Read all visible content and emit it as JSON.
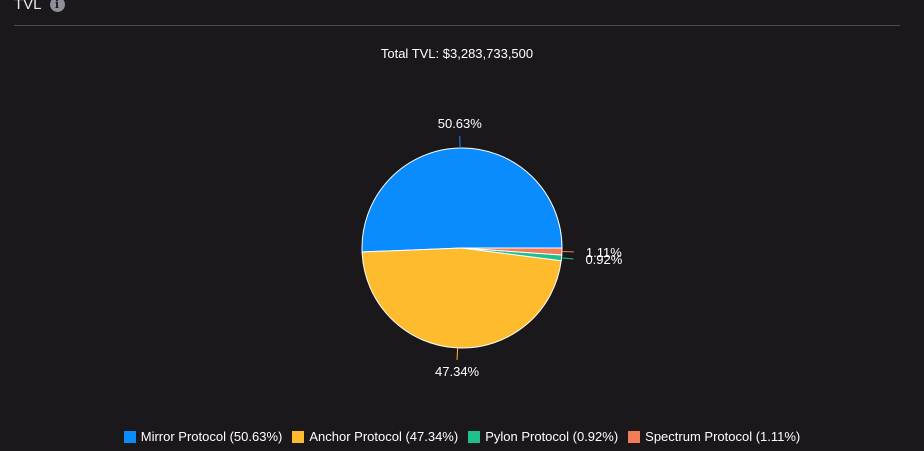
{
  "header": {
    "title": "TVL",
    "info_icon": "info-icon"
  },
  "chart_data": {
    "type": "pie",
    "title": "Total TVL: $3,283,733,500",
    "slices": [
      {
        "name": "Mirror Protocol",
        "value": 50.63,
        "label": "50.63%",
        "legend": "Mirror Protocol (50.63%)",
        "color": "#0a8cff"
      },
      {
        "name": "Anchor Protocol",
        "value": 47.34,
        "label": "47.34%",
        "legend": "Anchor Protocol (47.34%)",
        "color": "#fdbb2d"
      },
      {
        "name": "Pylon Protocol",
        "value": 0.92,
        "label": "0.92%",
        "legend": "Pylon Protocol (0.92%)",
        "color": "#1fbf8f"
      },
      {
        "name": "Spectrum Protocol",
        "value": 1.11,
        "label": "1.11%",
        "legend": "Spectrum Protocol (1.11%)",
        "color": "#f27c57"
      }
    ],
    "legend_position": "bottom"
  }
}
